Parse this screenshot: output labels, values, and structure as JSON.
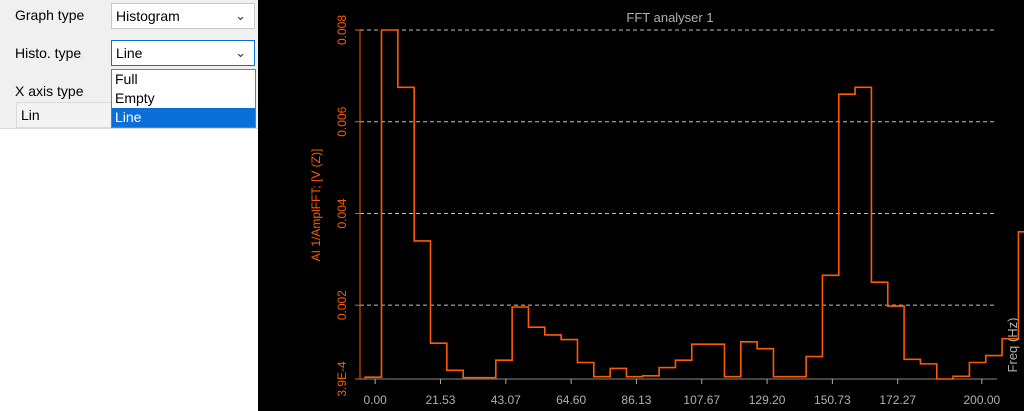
{
  "properties": {
    "graph_type_label": "Graph type",
    "graph_type_value": "Histogram",
    "histo_type_label": "Histo. type",
    "histo_type_value": "Line",
    "histo_type_options": [
      "Full",
      "Empty",
      "Line"
    ],
    "x_axis_type_label": "X axis type",
    "x_axis_type_value": "Lin"
  },
  "colors": {
    "series": "#ff5a00",
    "grid": "#bfbfbf",
    "title": "#b0b0b0",
    "background": "#000000"
  },
  "chart_data": {
    "type": "line",
    "title": "FFT analyser 1",
    "ylabel": "AI 1/AmplFFT; [V (Z)]",
    "xlabel": "Freq (Hz)",
    "xticks": [
      "0.00",
      "21.53",
      "43.07",
      "64.60",
      "86.13",
      "107.67",
      "129.20",
      "150.73",
      "172.27",
      "200.00"
    ],
    "xtick_values": [
      0,
      21.53,
      43.07,
      64.6,
      86.13,
      107.67,
      129.2,
      150.73,
      172.27,
      200.0
    ],
    "yticks": [
      "3.9E-4",
      "0.002",
      "0.004",
      "0.006",
      "0.008"
    ],
    "ytick_values": [
      0.00039,
      0.002,
      0.004,
      0.006,
      0.008
    ],
    "xlim": [
      -5,
      205
    ],
    "ylim": [
      0.00039,
      0.008
    ],
    "grid": true,
    "histogram_style": "line",
    "bin_width": 5.384,
    "bin_values": [
      0.00043,
      0.008,
      0.00675,
      0.0034,
      0.00117,
      0.00058,
      0.00042,
      0.00042,
      0.0008,
      0.00196,
      0.00152,
      0.00135,
      0.00125,
      0.00075,
      0.00044,
      0.00062,
      0.00044,
      0.00046,
      0.00064,
      0.0008,
      0.00115,
      0.00115,
      0.00044,
      0.0012,
      0.00105,
      0.00044,
      0.00044,
      0.00088,
      0.00265,
      0.0066,
      0.00675,
      0.0025,
      0.00198,
      0.00082,
      0.00072,
      0.00039,
      0.00045,
      0.00075,
      0.0009,
      0.00127,
      0.0036
    ]
  }
}
